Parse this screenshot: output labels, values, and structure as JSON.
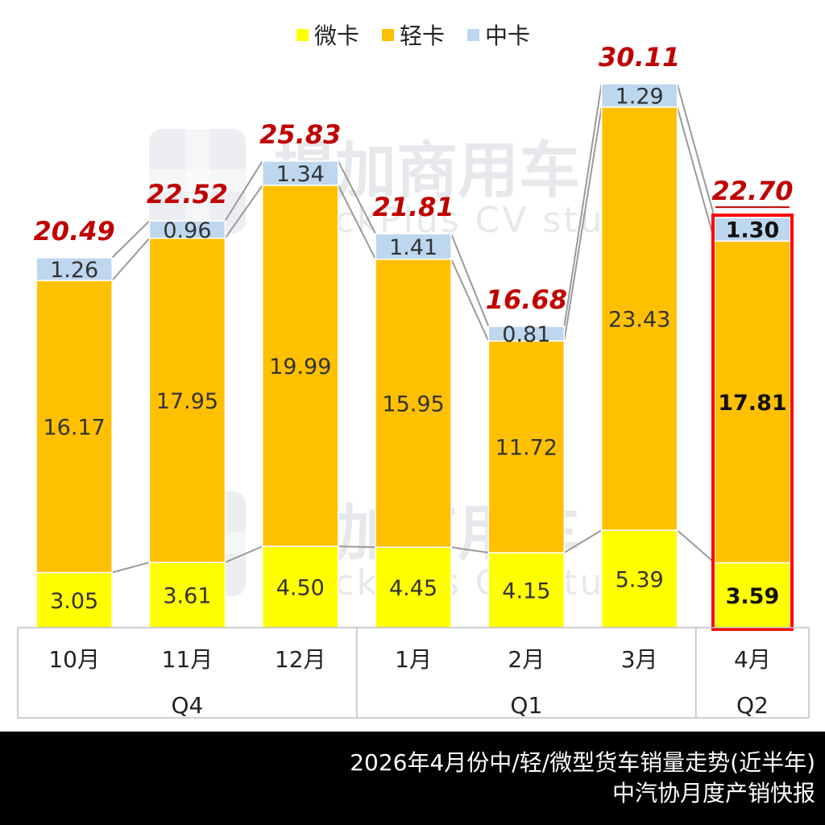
{
  "chart_data": {
    "type": "bar",
    "stacked": true,
    "categories": [
      "10月",
      "11月",
      "12月",
      "1月",
      "2月",
      "3月",
      "4月"
    ],
    "groups": [
      {
        "label": "Q4",
        "categories": [
          "10月",
          "11月",
          "12月"
        ]
      },
      {
        "label": "Q1",
        "categories": [
          "1月",
          "2月",
          "3月"
        ]
      },
      {
        "label": "Q2",
        "categories": [
          "4月"
        ]
      }
    ],
    "series": [
      {
        "name": "微卡",
        "color": "#ffff00",
        "values": [
          3.05,
          3.61,
          4.5,
          4.45,
          4.15,
          5.39,
          3.59
        ]
      },
      {
        "name": "轻卡",
        "color": "#ffc000",
        "values": [
          16.17,
          17.95,
          19.99,
          15.95,
          11.72,
          23.43,
          17.81
        ]
      },
      {
        "name": "中卡",
        "color": "#bdd7ee",
        "values": [
          1.26,
          0.96,
          1.34,
          1.41,
          0.81,
          1.29,
          1.3
        ]
      }
    ],
    "totals": [
      20.49,
      22.52,
      25.83,
      21.81,
      16.68,
      30.11,
      22.7
    ],
    "highlight_category": "4月",
    "highlight_color": "#ff0000",
    "total_label_color": "#c00000",
    "legend_position": "top-center",
    "grid": false,
    "ylim": [
      0,
      30.11
    ]
  },
  "watermark": {
    "chinese": "提加商用车",
    "english": "TruckPlus CV studio"
  },
  "footer": {
    "line1": "2026年4月份中/轻/微型货车销量走势(近半年)",
    "line2": "中汽协月度产销快报"
  }
}
